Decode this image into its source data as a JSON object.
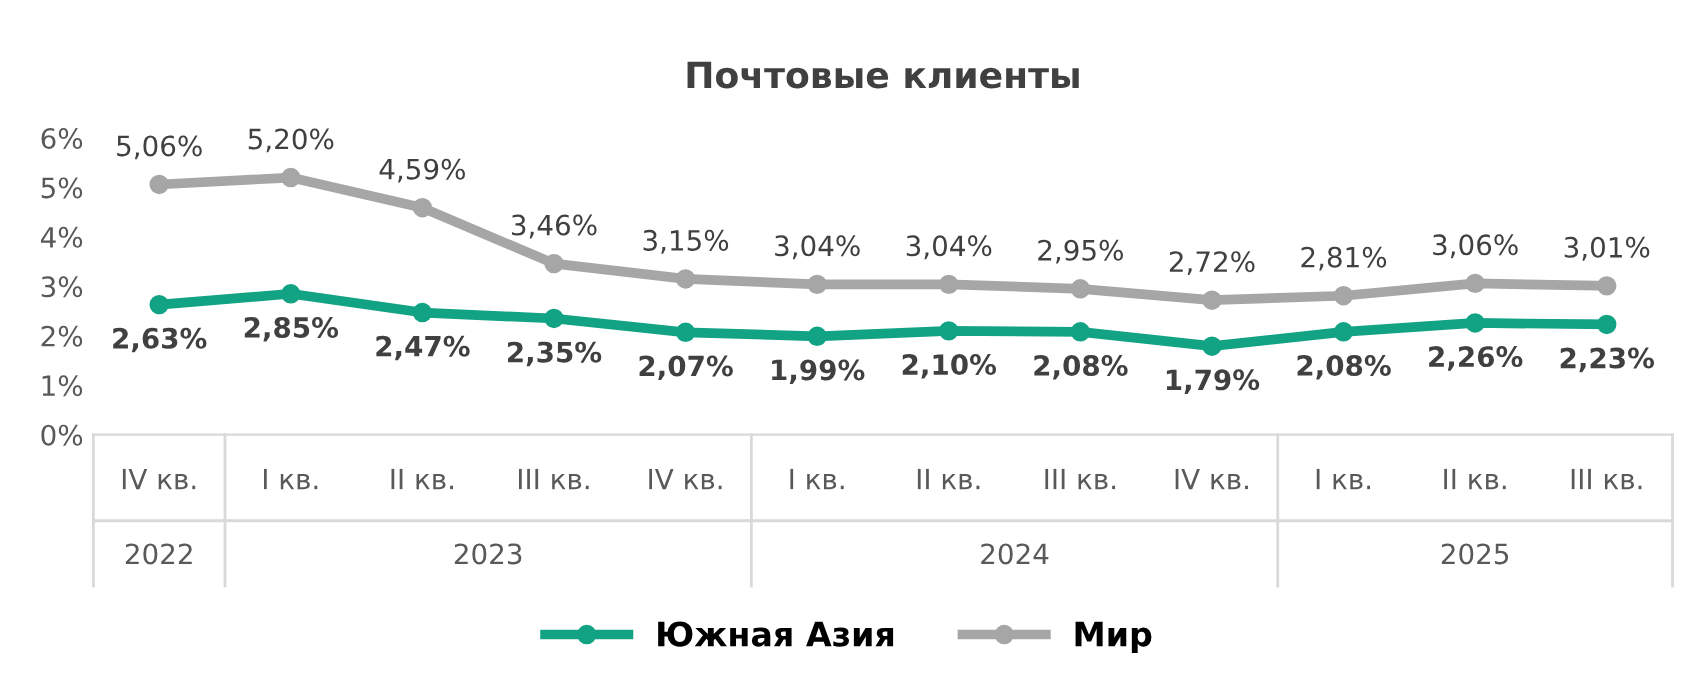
{
  "chart_data": {
    "type": "line",
    "title": "Почтовые клиенты",
    "categories": [
      "IV кв.",
      "I кв.",
      "II кв.",
      "III кв.",
      "IV кв.",
      "I кв.",
      "II кв.",
      "III кв.",
      "IV кв.",
      "I кв.",
      "II кв.",
      "III кв."
    ],
    "series": [
      {
        "name": "Южная Азия",
        "color": "#12a385",
        "values": [
          2.63,
          2.85,
          2.47,
          2.35,
          2.07,
          1.99,
          2.1,
          2.08,
          1.79,
          2.08,
          2.26,
          2.23
        ],
        "value_labels": [
          "2,63%",
          "2,85%",
          "2,47%",
          "2,35%",
          "2,07%",
          "1,99%",
          "2,10%",
          "2,08%",
          "1,79%",
          "2,08%",
          "2,26%",
          "2,23%"
        ]
      },
      {
        "name": "Мир",
        "color": "#a6a6a6",
        "values": [
          5.06,
          5.2,
          4.59,
          3.46,
          3.15,
          3.04,
          3.04,
          2.95,
          2.72,
          2.81,
          3.06,
          3.01
        ],
        "value_labels": [
          "5,06%",
          "5,20%",
          "4,59%",
          "3,46%",
          "3,15%",
          "3,04%",
          "3,04%",
          "2,95%",
          "2,72%",
          "2,81%",
          "3,06%",
          "3,01%"
        ]
      }
    ],
    "annotations": [
      "2022",
      "2023",
      "2024",
      "2025"
    ],
    "ylim": [
      0,
      6
    ],
    "yticks": [
      {
        "value": 0,
        "label": "0%"
      },
      {
        "value": 1,
        "label": "1%"
      },
      {
        "value": 2,
        "label": "2%"
      },
      {
        "value": 3,
        "label": "3%"
      },
      {
        "value": 4,
        "label": "4%"
      },
      {
        "value": 5,
        "label": "5%"
      },
      {
        "value": 6,
        "label": "6%"
      }
    ],
    "marker": "circle",
    "line_style": "solid",
    "legend": "bottom",
    "grid": false
  }
}
